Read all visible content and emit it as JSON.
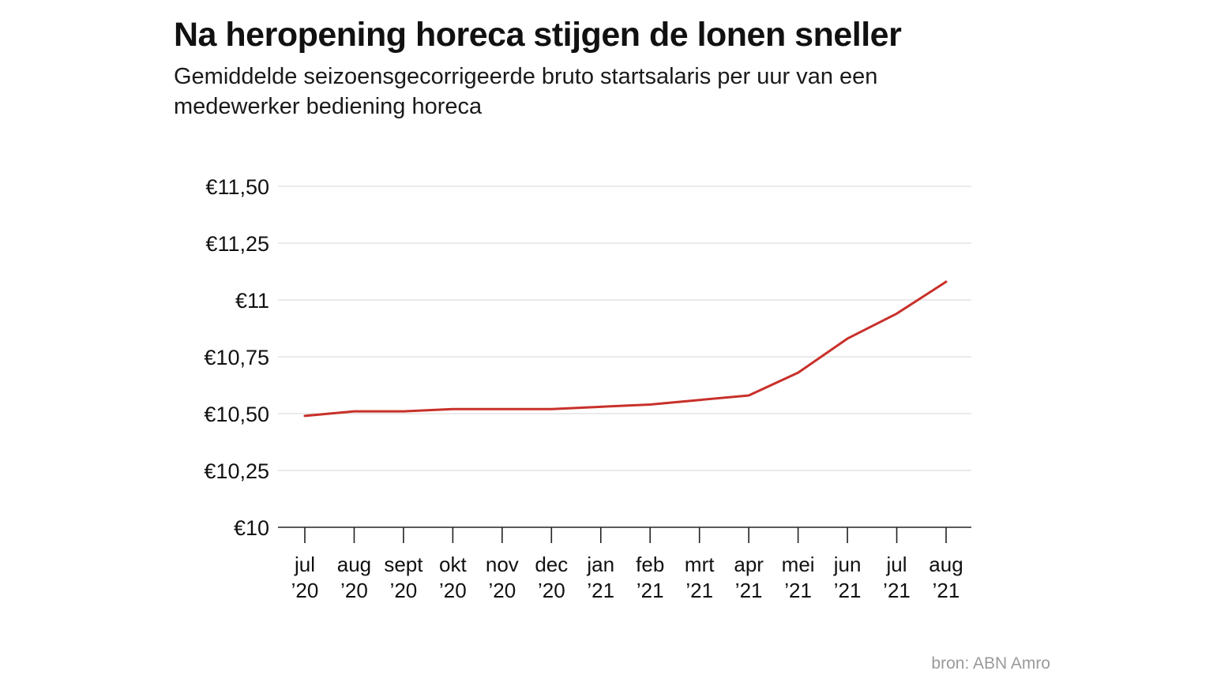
{
  "title": "Na heropening horeca stijgen de lonen sneller",
  "subtitle": "Gemiddelde seizoensgecorrigeerde bruto startsalaris per uur van een medewerker bediening horeca",
  "source": "bron: ABN Amro",
  "chart_data": {
    "type": "line",
    "title": "Na heropening horeca stijgen de lonen sneller",
    "subtitle": "Gemiddelde seizoensgecorrigeerde bruto startsalaris per uur van een medewerker bediening horeca",
    "xlabel": "",
    "ylabel": "",
    "categories": [
      [
        "jul",
        "’20"
      ],
      [
        "aug",
        "’20"
      ],
      [
        "sept",
        "’20"
      ],
      [
        "okt",
        "’20"
      ],
      [
        "nov",
        "’20"
      ],
      [
        "dec",
        "’20"
      ],
      [
        "jan",
        "’21"
      ],
      [
        "feb",
        "’21"
      ],
      [
        "mrt",
        "’21"
      ],
      [
        "apr",
        "’21"
      ],
      [
        "mei",
        "’21"
      ],
      [
        "jun",
        "’21"
      ],
      [
        "jul",
        "’21"
      ],
      [
        "aug",
        "’21"
      ]
    ],
    "series": [
      {
        "values": [
          10.49,
          10.51,
          10.51,
          10.52,
          10.52,
          10.52,
          10.53,
          10.54,
          10.56,
          10.58,
          10.68,
          10.83,
          10.94,
          11.08
        ],
        "color": "#c8302a"
      }
    ],
    "ylim": [
      10,
      11.5
    ],
    "yticks": [
      10,
      10.25,
      10.5,
      10.75,
      11,
      11.25,
      11.5
    ],
    "ytick_labels": [
      "€10",
      "€10,25",
      "€10,50",
      "€10,75",
      "€11",
      "€11,25",
      "€11,50"
    ],
    "grid": true,
    "legend": "none",
    "colors": {
      "line": "#c8302a",
      "grid": "#d4d4d4",
      "axis": "#222222",
      "text": "#111111"
    }
  }
}
